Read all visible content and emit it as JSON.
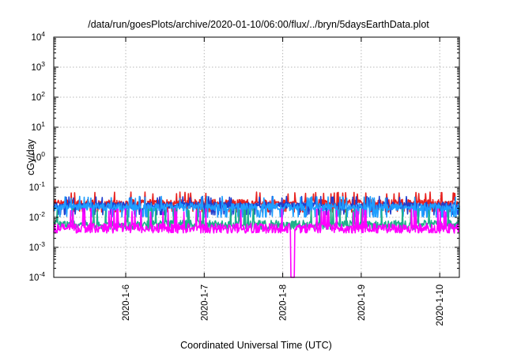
{
  "chart_data": {
    "type": "line",
    "title": "/data/run/goesPlots/archive/2020-01-10/06:00/flux/../bryn/5daysEarthData.plot",
    "xlabel": "Coordinated Universal Time (UTC)",
    "ylabel": "cGy/day",
    "yscale": "log",
    "ylim": [
      0.0001,
      10000
    ],
    "xlim": [
      "2020-01-05T02:00",
      "2020-01-10T06:00"
    ],
    "grid": true,
    "yticks": [
      {
        "base": "10",
        "exp": "4",
        "value": 10000
      },
      {
        "base": "10",
        "exp": "3",
        "value": 1000
      },
      {
        "base": "10",
        "exp": "2",
        "value": 100
      },
      {
        "base": "10",
        "exp": "1",
        "value": 10
      },
      {
        "base": "10",
        "exp": "0",
        "value": 1
      },
      {
        "base": "10",
        "exp": "-1",
        "value": 0.1
      },
      {
        "base": "10",
        "exp": "-2",
        "value": 0.01
      },
      {
        "base": "10",
        "exp": "-3",
        "value": 0.001
      },
      {
        "base": "10",
        "exp": "-4",
        "value": 0.0001
      }
    ],
    "xticks": [
      {
        "label": "2020-1-6",
        "value": "2020-01-06T00:00"
      },
      {
        "label": "2020-1-7",
        "value": "2020-01-07T00:00"
      },
      {
        "label": "2020-1-8",
        "value": "2020-01-08T00:00"
      },
      {
        "label": "2020-1-9",
        "value": "2020-01-09T00:00"
      },
      {
        "label": "2020-1-10",
        "value": "2020-01-10T00:00"
      }
    ],
    "series": [
      {
        "color": "#e8211e",
        "typical": 0.03,
        "low": 0.015,
        "high": 0.07
      },
      {
        "color": "#1f3fcf",
        "typical": 0.025,
        "low": 0.012,
        "high": 0.05
      },
      {
        "color": "#1e9fff",
        "typical": 0.022,
        "low": 0.01,
        "high": 0.05
      },
      {
        "color": "#1fb08a",
        "typical": 0.006,
        "low": 0.004,
        "high": 0.02
      },
      {
        "color": "#ff00ff",
        "typical": 0.0045,
        "low": 0.003,
        "high": 0.02,
        "dip": {
          "at": "2020-01-08T03:00",
          "min": 0.0001
        }
      }
    ]
  }
}
